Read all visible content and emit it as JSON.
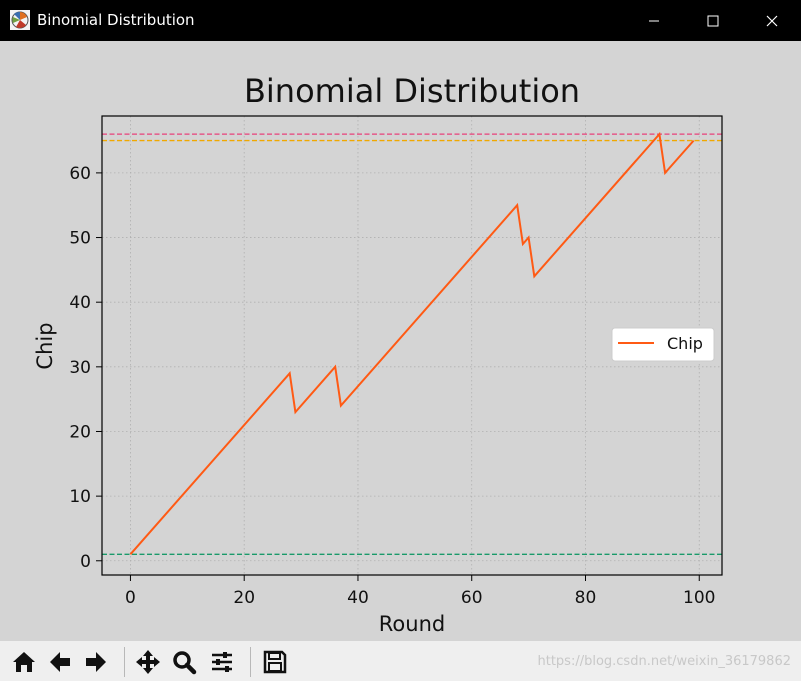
{
  "window": {
    "title": "Binomial Distribution",
    "controls": [
      "minimize-icon",
      "maximize-icon",
      "close-icon"
    ]
  },
  "toolbar": {
    "buttons": [
      "home-icon",
      "back-arrow-icon",
      "forward-arrow-icon",
      "pan-move-icon",
      "zoom-magnifier-icon",
      "configure-subplots-icon",
      "save-floppy-icon"
    ]
  },
  "watermark": "https://blog.csdn.net/weixin_36179862",
  "chart_data": {
    "type": "line",
    "title": "Binomial Distribution",
    "xlabel": "Round",
    "ylabel": "Chip",
    "xlim": [
      -5,
      104
    ],
    "ylim": [
      -2.2,
      68.8
    ],
    "xticks": [
      0,
      20,
      40,
      60,
      80,
      100
    ],
    "yticks": [
      0,
      10,
      20,
      30,
      40,
      50,
      60
    ],
    "grid": true,
    "legend": "center-right",
    "series": [
      {
        "name": "Chip",
        "color": "#ff5a14",
        "points": [
          [
            0,
            1
          ],
          [
            28,
            29
          ],
          [
            29,
            23
          ],
          [
            36,
            30
          ],
          [
            37,
            24
          ],
          [
            68,
            55
          ],
          [
            69,
            49
          ],
          [
            70,
            50
          ],
          [
            71,
            44
          ],
          [
            93,
            66
          ],
          [
            94,
            60
          ],
          [
            99,
            65
          ]
        ]
      }
    ],
    "hlines": [
      {
        "y": 66,
        "color": "#e8407a",
        "style": "dashed"
      },
      {
        "y": 65,
        "color": "#f0a800",
        "style": "dashed"
      },
      {
        "y": 1,
        "color": "#1a9a6a",
        "style": "dashed"
      }
    ]
  }
}
